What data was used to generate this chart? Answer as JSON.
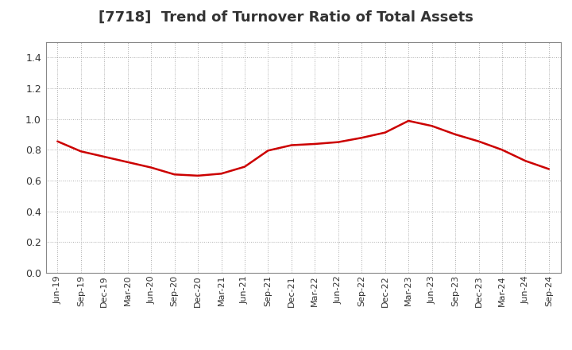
{
  "title": "[7718]  Trend of Turnover Ratio of Total Assets",
  "title_fontsize": 13,
  "title_color": "#333333",
  "line_color": "#cc0000",
  "background_color": "#ffffff",
  "plot_bg_color": "#ffffff",
  "grid_color": "#aaaaaa",
  "ylim": [
    0.0,
    1.5
  ],
  "yticks": [
    0.0,
    0.2,
    0.4,
    0.6,
    0.8,
    1.0,
    1.2,
    1.4
  ],
  "x_labels": [
    "Jun-19",
    "Sep-19",
    "Dec-19",
    "Mar-20",
    "Jun-20",
    "Sep-20",
    "Dec-20",
    "Mar-21",
    "Jun-21",
    "Sep-21",
    "Dec-21",
    "Mar-22",
    "Jun-22",
    "Sep-22",
    "Dec-22",
    "Mar-23",
    "Jun-23",
    "Sep-23",
    "Dec-23",
    "Mar-24",
    "Jun-24",
    "Sep-24"
  ],
  "y_values": [
    0.855,
    0.79,
    0.755,
    0.72,
    0.685,
    0.64,
    0.632,
    0.645,
    0.69,
    0.795,
    0.83,
    0.838,
    0.85,
    0.878,
    0.912,
    0.988,
    0.955,
    0.9,
    0.855,
    0.8,
    0.728,
    0.675
  ]
}
